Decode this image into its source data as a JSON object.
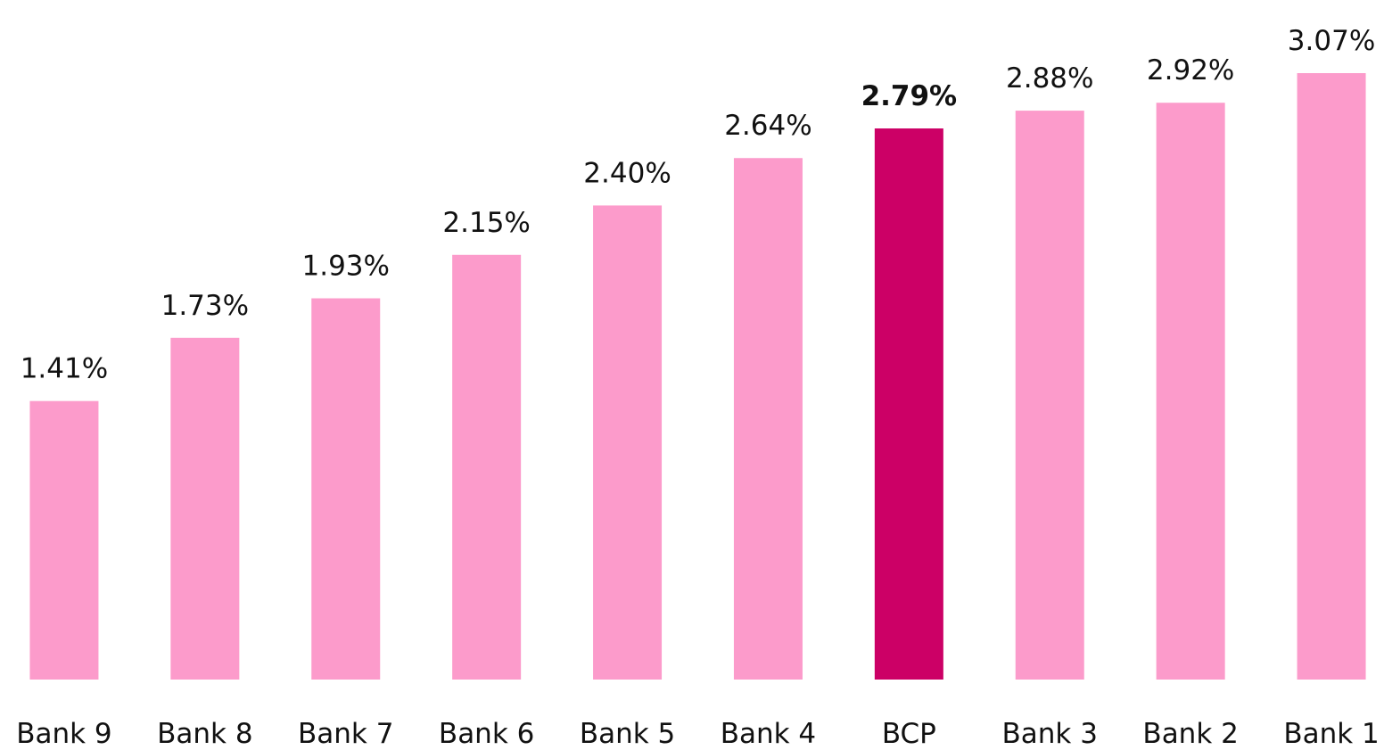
{
  "chart_data": {
    "type": "bar",
    "categories": [
      "Bank 9",
      "Bank 8",
      "Bank 7",
      "Bank 6",
      "Bank 5",
      "Bank 4",
      "BCP",
      "Bank 3",
      "Bank 2",
      "Bank 1"
    ],
    "values": [
      1.41,
      1.73,
      1.93,
      2.15,
      2.4,
      2.64,
      2.79,
      2.88,
      2.92,
      3.07
    ],
    "value_labels": [
      "1.41%",
      "1.73%",
      "1.93%",
      "2.15%",
      "2.40%",
      "2.64%",
      "2.79%",
      "2.88%",
      "2.92%",
      "3.07%"
    ],
    "color": "#fc9bcb",
    "highlight": "BCP",
    "highlight_color": "#cc0066"
  }
}
